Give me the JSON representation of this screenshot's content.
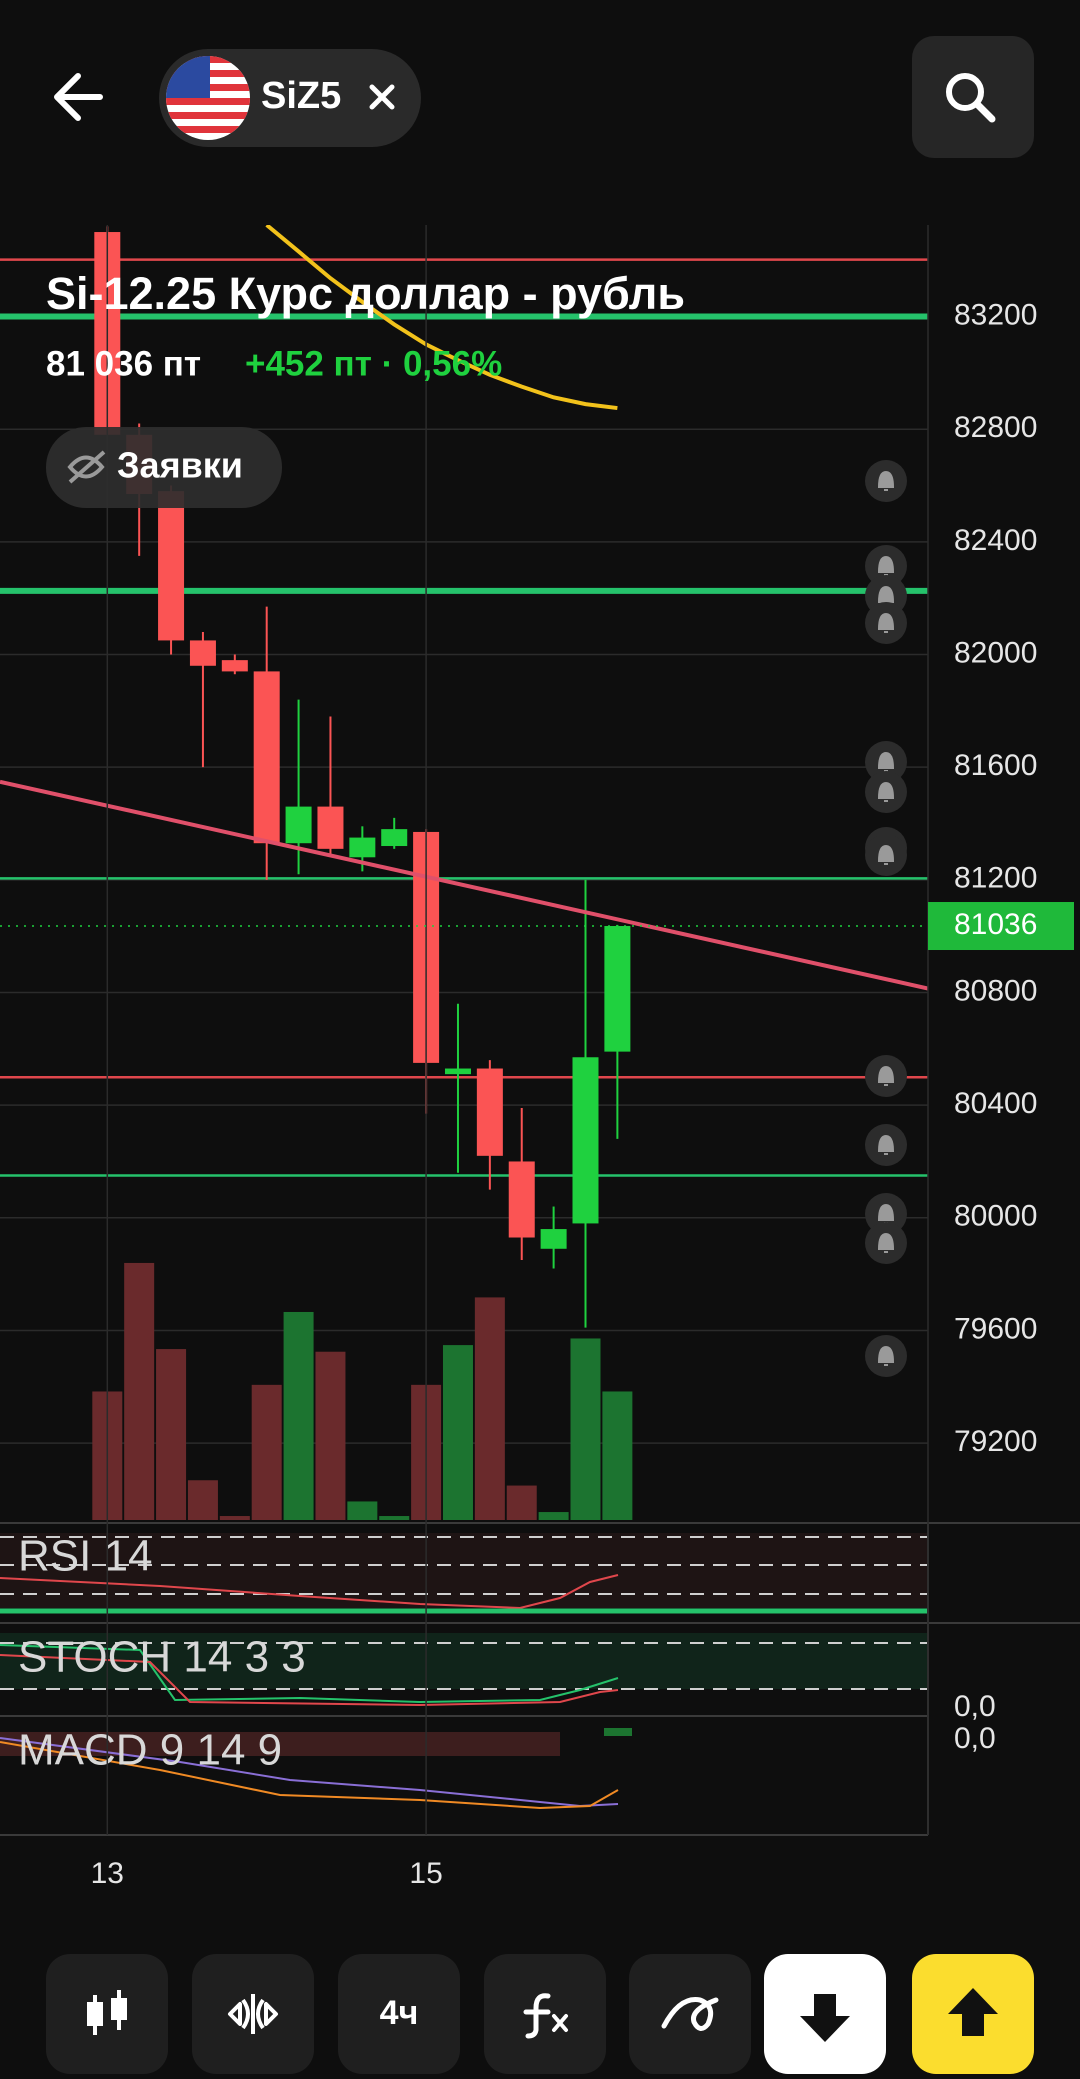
{
  "header": {
    "ticker": "SiZ5"
  },
  "chart_data": {
    "type": "candlestick",
    "title": "Si-12.25 Курс доллар - рубль",
    "price_label": "81 036 пт",
    "change_label": "+452 пт · 0,56%",
    "orders_button": "Заявки",
    "categories": [
      "13",
      null,
      null,
      null,
      null,
      null,
      null,
      null,
      null,
      null,
      "15",
      null,
      null,
      null,
      null,
      null,
      null
    ],
    "open": [
      83500,
      82780,
      82580,
      82050,
      81980,
      81940,
      81330,
      81460,
      81280,
      81320,
      81370,
      80510,
      80530,
      80200,
      79890,
      79980,
      80590
    ],
    "high": [
      83520,
      82820,
      82600,
      82080,
      82000,
      82170,
      81840,
      81780,
      81390,
      81420,
      81380,
      80760,
      80560,
      80390,
      80040,
      81200,
      81040
    ],
    "low": [
      82780,
      82350,
      82000,
      81600,
      81930,
      81200,
      81220,
      81290,
      81230,
      81310,
      80370,
      80160,
      80100,
      79850,
      79820,
      79610,
      80280
    ],
    "close": [
      82780,
      82570,
      82050,
      81960,
      81940,
      81330,
      81460,
      81310,
      81350,
      81380,
      80550,
      80530,
      80220,
      79930,
      79960,
      80570,
      81036
    ],
    "volume": [
      97,
      194,
      129,
      30,
      3,
      102,
      157,
      127,
      14,
      3,
      102,
      132,
      168,
      26,
      6,
      137,
      97
    ],
    "up_color": "#1fd13f",
    "down_color": "#fb5454",
    "volume_up_color": "#1c7430",
    "volume_down_color": "#6a2a2c",
    "ylim": [
      78927,
      83525
    ],
    "yticks": [
      79200,
      79600,
      80000,
      80400,
      80800,
      81200,
      81600,
      82000,
      82400,
      82800,
      83200
    ],
    "grid": true,
    "last_price": 81036,
    "levels": [
      {
        "value": 83402,
        "color": "#e0474c",
        "thick": false
      },
      {
        "value": 83200,
        "color": "#25c26b",
        "thick": true
      },
      {
        "value": 82226,
        "color": "#25c26b",
        "thick": true
      },
      {
        "value": 81205,
        "color": "#25c26b",
        "thick": false
      },
      {
        "value": 80499,
        "color": "#e0474c",
        "thick": false
      },
      {
        "value": 80150,
        "color": "#25c26b",
        "thick": false
      }
    ],
    "trendline": {
      "values": [
        81548,
        80814
      ],
      "color": "#e0506a"
    },
    "moving_average": {
      "color": "#f2c21b",
      "values": [
        null,
        null,
        null,
        null,
        null,
        83525,
        83431,
        83336,
        83252,
        83172,
        83101,
        83045,
        82993,
        82951,
        82913,
        82889,
        82875
      ]
    },
    "indicators": [
      {
        "name": "RSI 14"
      },
      {
        "name": "STOCH 14 3 3",
        "zero_label": "0,0"
      },
      {
        "name": "MACD 9 14 9",
        "zero_label": "0,0"
      }
    ]
  },
  "toolbar": {
    "timeframe": "4ч"
  }
}
